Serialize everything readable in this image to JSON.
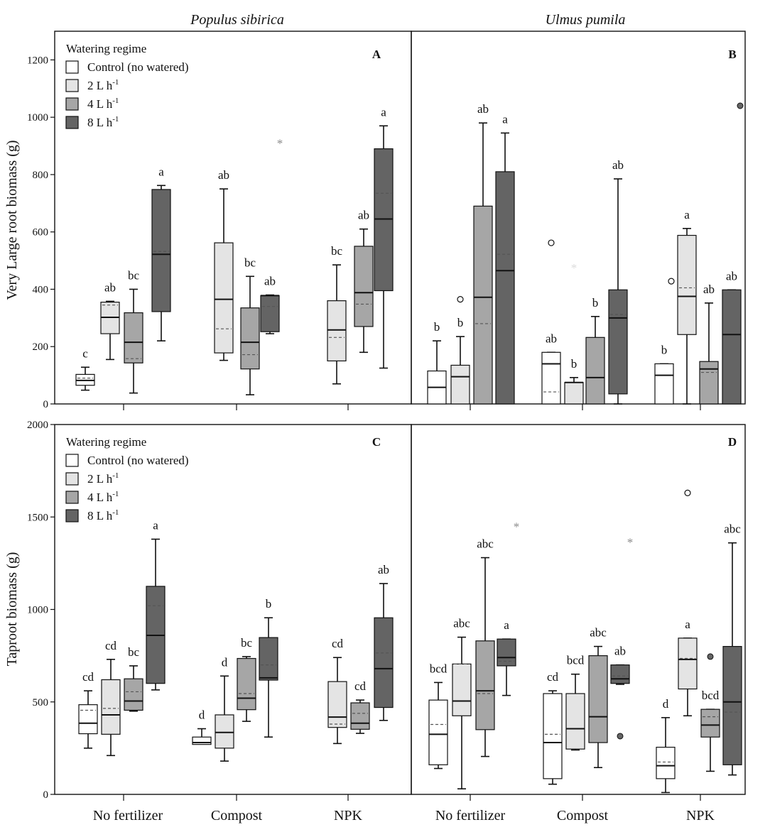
{
  "figure": {
    "column_titles": [
      "Populus sibirica",
      "Ulmus pumila"
    ],
    "x_categories": [
      "No fertilizer",
      "Compost",
      "NPK"
    ],
    "colors": {
      "Control (no watered)": "#ffffff",
      "2 L h-1": "#e4e4e4",
      "4 L h-1": "#a6a6a6",
      "8 L h-1": "#646464",
      "outline": "#111111",
      "median": "#111111",
      "mean": "#555555",
      "star": "#8a8a8a"
    },
    "legend": {
      "title": "Watering regime",
      "entries": [
        {
          "label": "Control (no watered)",
          "base": "Control (no watered)",
          "sup": ""
        },
        {
          "label": "2 L h-1",
          "base": "2 L h",
          "sup": "-1"
        },
        {
          "label": "4 L h-1",
          "base": "4 L h",
          "sup": "-1"
        },
        {
          "label": "8 L h-1",
          "base": "8 L h",
          "sup": "-1"
        }
      ]
    }
  },
  "chart_data": [
    {
      "type": "box",
      "panel": "A",
      "species": "Populus sibirica",
      "ylabel": "Very Large root biomass (g)",
      "ylim": [
        0,
        1200
      ],
      "yticks": [
        0,
        200,
        400,
        600,
        800,
        1000,
        1200
      ],
      "legend_shown": true,
      "groups": [
        {
          "category": "No fertilizer",
          "boxes": [
            {
              "series": "Control (no watered)",
              "min": 48,
              "q1": 65,
              "median": 82,
              "q3": 103,
              "max": 128,
              "mean": 90,
              "letter": "c",
              "outliers": []
            },
            {
              "series": "2 L h-1",
              "min": 155,
              "q1": 245,
              "median": 302,
              "q3": 355,
              "max": 358,
              "mean": 345,
              "letter": "ab",
              "outliers": []
            },
            {
              "series": "4 L h-1",
              "min": 38,
              "q1": 143,
              "median": 215,
              "q3": 318,
              "max": 400,
              "mean": 158,
              "letter": "bc",
              "outliers": []
            },
            {
              "series": "8 L h-1",
              "min": 220,
              "q1": 322,
              "median": 522,
              "q3": 748,
              "max": 762,
              "mean": 532,
              "letter": "a",
              "outliers": []
            }
          ]
        },
        {
          "category": "Compost",
          "boxes": [
            {
              "series": "2 L h-1",
              "min": 152,
              "q1": 178,
              "median": 365,
              "q3": 562,
              "max": 750,
              "mean": 262,
              "letter": "ab",
              "outliers": []
            },
            {
              "series": "4 L h-1",
              "min": 32,
              "q1": 122,
              "median": 215,
              "q3": 335,
              "max": 445,
              "mean": 172,
              "letter": "bc",
              "outliers": []
            },
            {
              "series": "8 L h-1",
              "min": 245,
              "q1": 252,
              "median": 378,
              "q3": 378,
              "max": 380,
              "mean": 340,
              "letter": "ab",
              "outliers": [
                {
                  "value": 910,
                  "symbol": "star",
                  "dx": 14
                }
              ]
            }
          ]
        },
        {
          "category": "NPK",
          "boxes": [
            {
              "series": "2 L h-1",
              "min": 70,
              "q1": 150,
              "median": 258,
              "q3": 360,
              "max": 485,
              "mean": 232,
              "letter": "bc",
              "outliers": []
            },
            {
              "series": "4 L h-1",
              "min": 180,
              "q1": 270,
              "median": 388,
              "q3": 550,
              "max": 610,
              "mean": 348,
              "letter": "ab",
              "outliers": []
            },
            {
              "series": "8 L h-1",
              "min": 125,
              "q1": 395,
              "median": 645,
              "q3": 890,
              "max": 970,
              "mean": 735,
              "letter": "a",
              "outliers": []
            }
          ]
        }
      ]
    },
    {
      "type": "box",
      "panel": "B",
      "species": "Ulmus pumila",
      "ylabel": "Very Large root biomass (g)",
      "ylim": [
        0,
        1200
      ],
      "yticks": [
        0,
        200,
        400,
        600,
        800,
        1000,
        1200
      ],
      "legend_shown": false,
      "groups": [
        {
          "category": "No fertilizer",
          "boxes": [
            {
              "series": "Control (no watered)",
              "min": 0,
              "q1": 0,
              "median": 58,
              "q3": 115,
              "max": 220,
              "mean": null,
              "letter": "b",
              "outliers": []
            },
            {
              "series": "2 L h-1",
              "min": 0,
              "q1": 0,
              "median": 95,
              "q3": 135,
              "max": 235,
              "mean": null,
              "letter": "b",
              "outliers": [
                {
                  "value": 365,
                  "symbol": "circle",
                  "dx": 0
                }
              ]
            },
            {
              "series": "4 L h-1",
              "min": 0,
              "q1": 0,
              "median": 372,
              "q3": 690,
              "max": 980,
              "mean": 280,
              "letter": "ab",
              "outliers": []
            },
            {
              "series": "8 L h-1",
              "min": 0,
              "q1": 0,
              "median": 465,
              "q3": 810,
              "max": 945,
              "mean": 522,
              "letter": "a",
              "outliers": []
            }
          ]
        },
        {
          "category": "Compost",
          "boxes": [
            {
              "series": "Control (no watered)",
              "min": 0,
              "q1": 0,
              "median": 140,
              "q3": 180,
              "max": 180,
              "mean": 42,
              "letter": "ab",
              "outliers": [
                {
                  "value": 562,
                  "symbol": "circle",
                  "dx": 0
                }
              ]
            },
            {
              "series": "2 L h-1",
              "min": 0,
              "q1": 0,
              "median": 75,
              "q3": 75,
              "max": 92,
              "mean": null,
              "letter": "b",
              "outliers": [
                {
                  "value": 475,
                  "symbol": "star-light",
                  "dx": 0
                }
              ]
            },
            {
              "series": "4 L h-1",
              "min": 0,
              "q1": 0,
              "median": 92,
              "q3": 232,
              "max": 305,
              "mean": null,
              "letter": "b",
              "outliers": []
            },
            {
              "series": "8 L h-1",
              "min": 0,
              "q1": 35,
              "median": 300,
              "q3": 398,
              "max": 785,
              "mean": 312,
              "letter": "ab",
              "outliers": []
            }
          ]
        },
        {
          "category": "NPK",
          "boxes": [
            {
              "series": "Control (no watered)",
              "min": 0,
              "q1": 0,
              "median": 100,
              "q3": 140,
              "max": 140,
              "mean": null,
              "letter": "b",
              "outliers": [
                {
                  "value": 428,
                  "symbol": "circle",
                  "dx": 10
                }
              ]
            },
            {
              "series": "2 L h-1",
              "min": 0,
              "q1": 242,
              "median": 375,
              "q3": 588,
              "max": 612,
              "mean": 405,
              "letter": "a",
              "outliers": []
            },
            {
              "series": "4 L h-1",
              "min": 0,
              "q1": 0,
              "median": 122,
              "q3": 148,
              "max": 352,
              "mean": 110,
              "letter": "ab",
              "outliers": []
            },
            {
              "series": "8 L h-1",
              "min": 0,
              "q1": 0,
              "median": 242,
              "q3": 398,
              "max": 398,
              "mean": null,
              "letter": "ab",
              "outliers": [
                {
                  "value": 1040,
                  "symbol": "dot",
                  "dx": 12
                }
              ]
            }
          ]
        }
      ]
    },
    {
      "type": "box",
      "panel": "C",
      "species": "Populus sibirica",
      "ylabel": "Taproot biomass (g)",
      "ylim": [
        0,
        2000
      ],
      "yticks": [
        0,
        500,
        1000,
        1500,
        2000
      ],
      "legend_shown": true,
      "groups": [
        {
          "category": "No fertilizer",
          "boxes": [
            {
              "series": "Control (no watered)",
              "min": 250,
              "q1": 328,
              "median": 385,
              "q3": 485,
              "max": 560,
              "mean": 455,
              "letter": "cd",
              "outliers": []
            },
            {
              "series": "2 L h-1",
              "min": 210,
              "q1": 325,
              "median": 430,
              "q3": 620,
              "max": 730,
              "mean": 465,
              "letter": "cd",
              "outliers": []
            },
            {
              "series": "4 L h-1",
              "min": 450,
              "q1": 455,
              "median": 505,
              "q3": 625,
              "max": 695,
              "mean": 555,
              "letter": "bc",
              "outliers": []
            },
            {
              "series": "8 L h-1",
              "min": 565,
              "q1": 600,
              "median": 860,
              "q3": 1125,
              "max": 1380,
              "mean": 1020,
              "letter": "a",
              "outliers": []
            }
          ]
        },
        {
          "category": "Compost",
          "boxes": [
            {
              "series": "Control (no watered)",
              "min": 270,
              "q1": 270,
              "median": 280,
              "q3": 310,
              "max": 355,
              "mean": null,
              "letter": "d",
              "outliers": []
            },
            {
              "series": "2 L h-1",
              "min": 180,
              "q1": 250,
              "median": 335,
              "q3": 430,
              "max": 640,
              "mean": null,
              "letter": "d",
              "outliers": []
            },
            {
              "series": "4 L h-1",
              "min": 395,
              "q1": 458,
              "median": 520,
              "q3": 735,
              "max": 745,
              "mean": 545,
              "letter": "bc",
              "outliers": []
            },
            {
              "series": "8 L h-1",
              "min": 310,
              "q1": 618,
              "median": 630,
              "q3": 848,
              "max": 955,
              "mean": 700,
              "letter": "b",
              "outliers": []
            }
          ]
        },
        {
          "category": "NPK",
          "boxes": [
            {
              "series": "2 L h-1",
              "min": 275,
              "q1": 362,
              "median": 418,
              "q3": 610,
              "max": 740,
              "mean": 380,
              "letter": "cd",
              "outliers": []
            },
            {
              "series": "4 L h-1",
              "min": 330,
              "q1": 352,
              "median": 385,
              "q3": 495,
              "max": 510,
              "mean": 438,
              "letter": "cd",
              "outliers": []
            },
            {
              "series": "8 L h-1",
              "min": 400,
              "q1": 470,
              "median": 680,
              "q3": 955,
              "max": 1140,
              "mean": 765,
              "letter": "ab",
              "outliers": []
            }
          ]
        }
      ]
    },
    {
      "type": "box",
      "panel": "D",
      "species": "Ulmus pumila",
      "ylabel": "Taproot biomass (g)",
      "ylim": [
        0,
        2000
      ],
      "yticks": [
        0,
        500,
        1000,
        1500,
        2000
      ],
      "legend_shown": false,
      "groups": [
        {
          "category": "No fertilizer",
          "boxes": [
            {
              "series": "Control (no watered)",
              "min": 140,
              "q1": 160,
              "median": 325,
              "q3": 510,
              "max": 605,
              "mean": 378,
              "letter": "bcd",
              "outliers": []
            },
            {
              "series": "2 L h-1",
              "min": 30,
              "q1": 425,
              "median": 505,
              "q3": 705,
              "max": 850,
              "mean": 705,
              "letter": "abc",
              "outliers": []
            },
            {
              "series": "4 L h-1",
              "min": 205,
              "q1": 350,
              "median": 560,
              "q3": 830,
              "max": 1280,
              "mean": 545,
              "letter": "abc",
              "outliers": []
            },
            {
              "series": "8 L h-1",
              "min": 535,
              "q1": 695,
              "median": 740,
              "q3": 840,
              "max": 840,
              "mean": 720,
              "letter": "a",
              "outliers": [
                {
                  "value": 1450,
                  "symbol": "star",
                  "dx": 14
                }
              ]
            }
          ]
        },
        {
          "category": "Compost",
          "boxes": [
            {
              "series": "Control (no watered)",
              "min": 55,
              "q1": 85,
              "median": 280,
              "q3": 545,
              "max": 560,
              "mean": 325,
              "letter": "cd",
              "outliers": []
            },
            {
              "series": "2 L h-1",
              "min": 240,
              "q1": 245,
              "median": 355,
              "q3": 545,
              "max": 650,
              "mean": null,
              "letter": "bcd",
              "outliers": []
            },
            {
              "series": "4 L h-1",
              "min": 145,
              "q1": 280,
              "median": 420,
              "q3": 750,
              "max": 800,
              "mean": null,
              "letter": "abc",
              "outliers": []
            },
            {
              "series": "8 L h-1",
              "min": 595,
              "q1": 600,
              "median": 625,
              "q3": 700,
              "max": 700,
              "mean": 640,
              "letter": "ab",
              "outliers": [
                {
                  "value": 1365,
                  "symbol": "star",
                  "dx": 14
                },
                {
                  "value": 315,
                  "symbol": "dot",
                  "dx": 0
                }
              ]
            }
          ]
        },
        {
          "category": "NPK",
          "boxes": [
            {
              "series": "Control (no watered)",
              "min": 10,
              "q1": 85,
              "median": 155,
              "q3": 255,
              "max": 415,
              "mean": 175,
              "letter": "d",
              "outliers": []
            },
            {
              "series": "2 L h-1",
              "min": 425,
              "q1": 570,
              "median": 730,
              "q3": 845,
              "max": 845,
              "mean": 735,
              "letter": "a",
              "outliers": [
                {
                  "value": 1630,
                  "symbol": "circle",
                  "dx": 0
                }
              ]
            },
            {
              "series": "4 L h-1",
              "min": 125,
              "q1": 310,
              "median": 375,
              "q3": 460,
              "max": 460,
              "mean": 420,
              "letter": "bcd",
              "outliers": [
                {
                  "value": 745,
                  "symbol": "dot",
                  "dx": 0
                }
              ]
            },
            {
              "series": "8 L h-1",
              "min": 105,
              "q1": 160,
              "median": 500,
              "q3": 800,
              "max": 1360,
              "mean": 445,
              "letter": "abc",
              "outliers": []
            }
          ]
        }
      ]
    }
  ]
}
